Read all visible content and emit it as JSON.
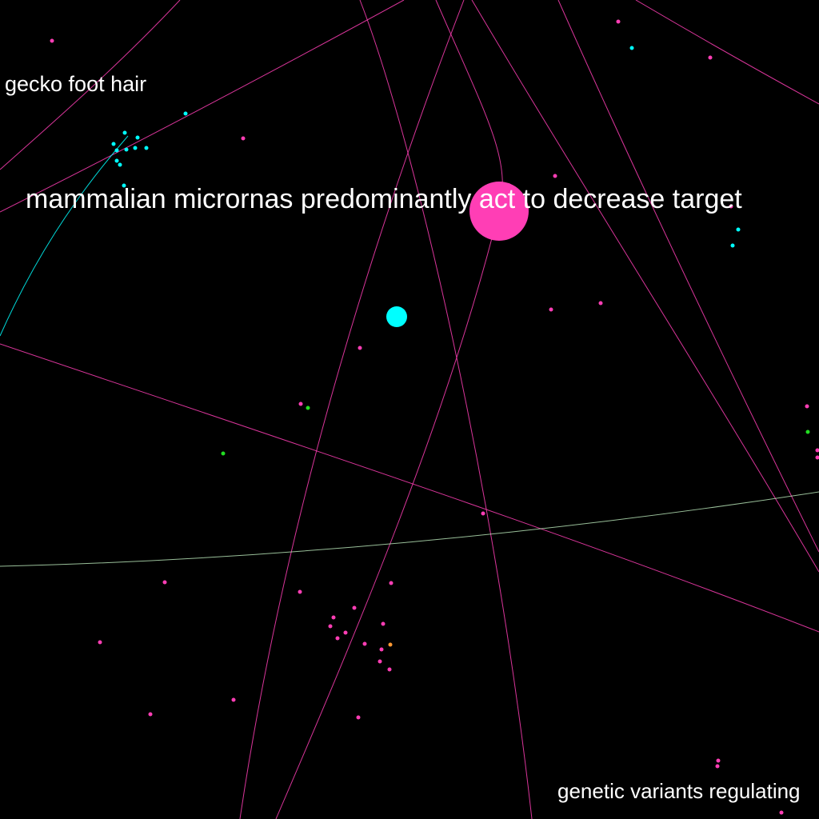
{
  "colors": {
    "background": "#000000",
    "magenta": "#ff3eb5",
    "cyan": "#00ffff",
    "green": "#22dd22",
    "orange": "#ff9933",
    "pale": "#ccffcc",
    "label": "#ffffff"
  },
  "labels": {
    "gecko": "gecko foot hair",
    "mirna": "mammalian micrornas predominantly act to decrease target",
    "genetic": "genetic variants regulating"
  },
  "node_groups": [
    "magenta",
    "cyan",
    "green",
    "orange"
  ]
}
